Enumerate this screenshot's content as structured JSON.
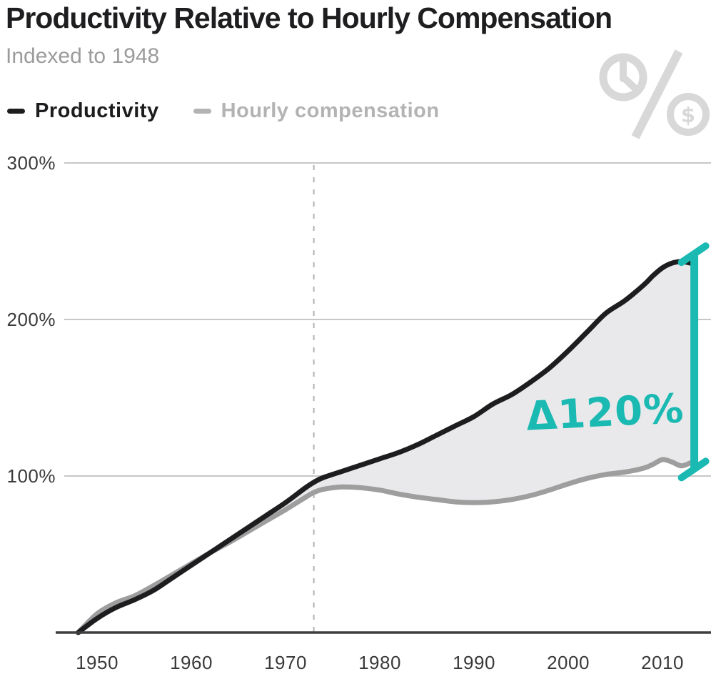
{
  "colors": {
    "productivity_line": "#1d1d1f",
    "compensation_line": "#9e9e9e",
    "gap_fill": "#e9e9eb",
    "accent_teal": "#1ab9b2",
    "grid_line": "#c7c7c7",
    "axis_line": "#3f3f3f",
    "dashed_line": "#b0b0b0",
    "icon_gray": "#d8d8d8",
    "title_text": "#1e1e20",
    "muted_text": "#9b9b9b",
    "tick_text": "#3a3a3a"
  },
  "icon": {
    "name": "clock-over-dollar-percent",
    "dollar_sign": "$"
  },
  "chart_data": {
    "type": "line",
    "title": "Productivity Relative to Hourly Compensation",
    "subtitle": "Indexed to 1948",
    "legend_position": "top-left",
    "grid": true,
    "x": [
      1948,
      1950,
      1952,
      1954,
      1956,
      1958,
      1960,
      1962,
      1964,
      1966,
      1968,
      1970,
      1972,
      1973,
      1974,
      1976,
      1978,
      1980,
      1982,
      1984,
      1986,
      1988,
      1990,
      1992,
      1994,
      1996,
      1998,
      2000,
      2002,
      2004,
      2006,
      2008,
      2009,
      2010,
      2011,
      2012,
      2013
    ],
    "series": [
      {
        "name": "Productivity",
        "color": "#1d1d1f",
        "values": [
          0,
          9,
          16,
          21,
          27,
          35,
          43,
          51,
          59,
          67,
          75,
          83,
          92,
          96,
          99,
          103,
          107,
          111,
          115,
          120,
          126,
          132,
          138,
          146,
          152,
          160,
          169,
          180,
          192,
          204,
          212,
          222,
          228,
          233,
          236,
          237,
          236
        ]
      },
      {
        "name": "Hourly compensation",
        "color": "#9e9e9e",
        "values": [
          0,
          12,
          19,
          23.5,
          30,
          37,
          44,
          51,
          57.5,
          64.5,
          71.5,
          78.5,
          86,
          89.5,
          91.5,
          93,
          92.5,
          91,
          88.5,
          86.5,
          85,
          83.5,
          83,
          83.5,
          85,
          87.5,
          91,
          95,
          98.5,
          101,
          102.5,
          105,
          107.5,
          110.5,
          109,
          106.5,
          108.5
        ]
      }
    ],
    "y_axis": {
      "tick_labels": [
        "300%",
        "200%",
        "100%"
      ],
      "tick_values": [
        300,
        200,
        100
      ],
      "range": [
        0,
        300
      ],
      "unit": "%"
    },
    "x_axis": {
      "tick_labels": [
        "1950",
        "1960",
        "1970",
        "1980",
        "1990",
        "2000",
        "2010"
      ],
      "tick_values": [
        1950,
        1960,
        1970,
        1980,
        1990,
        2000,
        2010
      ],
      "range": [
        1948,
        2013
      ]
    },
    "annotations": {
      "divergence_year": 1973,
      "delta_label": "Δ120%"
    }
  }
}
